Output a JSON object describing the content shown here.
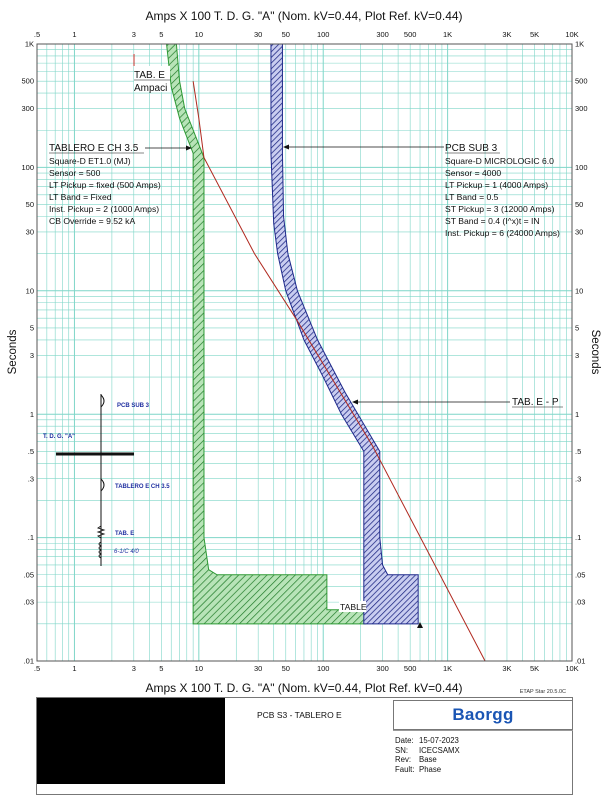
{
  "chart_data": {
    "type": "line",
    "title": "Amps  X  100   T. D. G. \"A\" (Nom. kV=0.44, Plot Ref. kV=0.44)",
    "bottom_title": "Amps  X  100   T. D. G. \"A\" (Nom. kV=0.44, Plot Ref. kV=0.44)",
    "ylabel_left": "Seconds",
    "ylabel_right": "Seconds",
    "x_scale": "log",
    "y_scale": "log",
    "xlim": [
      0.5,
      10000
    ],
    "ylim": [
      0.01,
      1000
    ],
    "grid": true,
    "x_tick_labels": [
      {
        "v": 0.5,
        "t": ".5"
      },
      {
        "v": 1,
        "t": "1"
      },
      {
        "v": 3,
        "t": "3"
      },
      {
        "v": 5,
        "t": "5"
      },
      {
        "v": 10,
        "t": "10"
      },
      {
        "v": 30,
        "t": "30"
      },
      {
        "v": 50,
        "t": "50"
      },
      {
        "v": 100,
        "t": "100"
      },
      {
        "v": 300,
        "t": "300"
      },
      {
        "v": 500,
        "t": "500"
      },
      {
        "v": 1000,
        "t": "1K"
      },
      {
        "v": 3000,
        "t": "3K"
      },
      {
        "v": 5000,
        "t": "5K"
      },
      {
        "v": 10000,
        "t": "10K"
      }
    ],
    "y_tick_labels": [
      {
        "v": 1000,
        "t": "1K"
      },
      {
        "v": 500,
        "t": "500"
      },
      {
        "v": 300,
        "t": "300"
      },
      {
        "v": 100,
        "t": "100"
      },
      {
        "v": 50,
        "t": "50"
      },
      {
        "v": 30,
        "t": "30"
      },
      {
        "v": 10,
        "t": "10"
      },
      {
        "v": 5,
        "t": "5"
      },
      {
        "v": 3,
        "t": "3"
      },
      {
        "v": 1,
        "t": "1"
      },
      {
        "v": 0.5,
        "t": ".5"
      },
      {
        "v": 0.3,
        "t": ".3"
      },
      {
        "v": 0.1,
        "t": ".1"
      },
      {
        "v": 0.05,
        "t": ".05"
      },
      {
        "v": 0.03,
        "t": ".03"
      },
      {
        "v": 0.01,
        "t": ".01"
      }
    ],
    "bands": [
      {
        "name": "TABLERO E CH 3.5",
        "color": "#2e9a35",
        "fill": "#9fd89f",
        "polygon": [
          [
            5.5,
            1000
          ],
          [
            6.6,
            1000
          ],
          [
            7,
            500
          ],
          [
            7.7,
            300
          ],
          [
            11,
            120
          ],
          [
            11,
            0.1
          ],
          [
            12,
            0.055
          ],
          [
            14,
            0.05
          ],
          [
            107,
            0.05
          ],
          [
            107,
            0.026
          ],
          [
            220,
            0.026
          ],
          [
            220,
            0.02
          ],
          [
            9,
            0.02
          ],
          [
            9,
            130
          ],
          [
            7,
            250
          ],
          [
            6,
            450
          ],
          [
            5.5,
            1000
          ]
        ]
      },
      {
        "name": "PCB SUB 3",
        "color": "#1f2a8c",
        "fill": "#b4b9e6",
        "polygon": [
          [
            38,
            1000
          ],
          [
            47,
            1000
          ],
          [
            47,
            130
          ],
          [
            48,
            40
          ],
          [
            52,
            20
          ],
          [
            62,
            10
          ],
          [
            90,
            4
          ],
          [
            150,
            1.5
          ],
          [
            285,
            0.5
          ],
          [
            285,
            0.1
          ],
          [
            300,
            0.06
          ],
          [
            330,
            0.05
          ],
          [
            580,
            0.05
          ],
          [
            580,
            0.02
          ],
          [
            212,
            0.02
          ],
          [
            212,
            0.5
          ],
          [
            140,
            1
          ],
          [
            100,
            2
          ],
          [
            70,
            4
          ],
          [
            50,
            10
          ],
          [
            43,
            20
          ],
          [
            40,
            35
          ],
          [
            38,
            130
          ],
          [
            38,
            1000
          ]
        ]
      }
    ],
    "cable_line": {
      "name": "TAB. E - P",
      "color": "#b0281e",
      "points": [
        [
          9,
          500
        ],
        [
          10,
          250
        ],
        [
          11,
          120
        ],
        [
          28,
          20
        ],
        [
          60,
          6
        ],
        [
          250,
          0.55
        ],
        [
          2000,
          0.01
        ]
      ]
    },
    "annotations": {
      "tab_e_top": [
        "TAB. E",
        "Ampaci"
      ],
      "tablero": {
        "heading": "TABLERO E CH 3.5",
        "lines": [
          "Square-D  ET1.0 (MJ)",
          "Sensor = 500",
          "LT Pickup = fixed (500 Amps)",
          "LT Band = Fixed",
          "Inst. Pickup = 2 (1000 Amps)",
          "CB Override = 9.52 kA"
        ]
      },
      "pcb": {
        "heading": "PCB SUB 3",
        "lines": [
          "Square-D  MICROLOGIC 6.0",
          "Sensor = 4000",
          "LT Pickup = 1 (4000 Amps)",
          "LT Band = 0.5",
          "ST Pickup = 3 (12000 Amps)",
          "ST Band = 0.4  (I^x)t = IN",
          "Inst. Pickup = 6 (24000 Amps)"
        ]
      },
      "tab_e_p": "TAB. E - P",
      "table_bottom": "TABLE"
    },
    "one_line": {
      "pcb_sub3": "PCB SUB 3",
      "bus": "T. D. G. \"A\"",
      "tablero": "TABLERO E CH 3.5",
      "tab_e": "TAB. E",
      "cable": "6-1/C 4/0"
    }
  },
  "footer": {
    "software": "ETAP Star 20.5.0C",
    "project": "PCB S3 - TABLERO E",
    "logo": "Baorgg",
    "date_label": "Date:",
    "date": "15-07-2023",
    "sn_label": "SN:",
    "sn": "ICECSAMX",
    "rev_label": "Rev:",
    "rev": "Base",
    "fault_label": "Fault:",
    "fault": "Phase"
  },
  "colors": {
    "grid": "#7fd6c8",
    "green_band": "#2e9a35",
    "blue_band": "#1f2a8c",
    "cable": "#b0281e",
    "oneline": "#1f2fa0"
  }
}
